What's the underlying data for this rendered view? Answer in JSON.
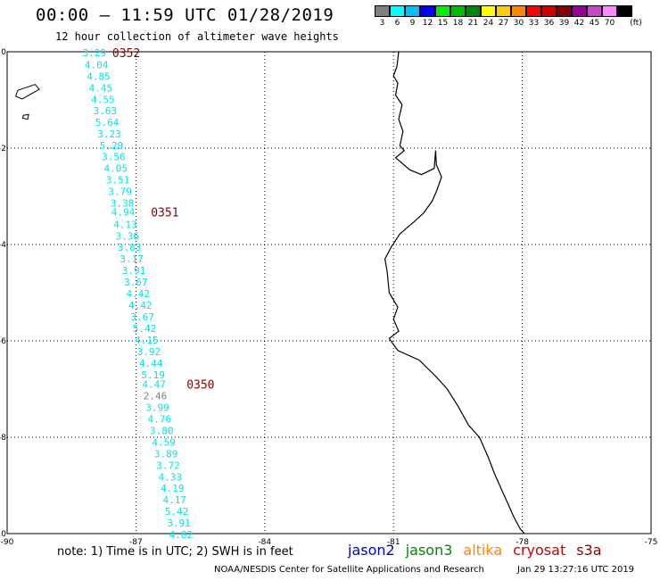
{
  "header": {
    "title": "00:00 – 11:59 UTC 01/28/2019",
    "subtitle": "12 hour collection of altimeter wave heights"
  },
  "legend": {
    "unit": "(ft)",
    "bins": [
      {
        "label": "3",
        "color": "#808080"
      },
      {
        "label": "6",
        "color": "#00ffff"
      },
      {
        "label": "9",
        "color": "#00bfff"
      },
      {
        "label": "12",
        "color": "#0000ff"
      },
      {
        "label": "15",
        "color": "#00ee00"
      },
      {
        "label": "18",
        "color": "#00bb00"
      },
      {
        "label": "21",
        "color": "#008800"
      },
      {
        "label": "24",
        "color": "#ffff00"
      },
      {
        "label": "27",
        "color": "#ffcc00"
      },
      {
        "label": "30",
        "color": "#ff8800"
      },
      {
        "label": "33",
        "color": "#ff0000"
      },
      {
        "label": "36",
        "color": "#cc0000"
      },
      {
        "label": "39",
        "color": "#880000"
      },
      {
        "label": "42",
        "color": "#990099"
      },
      {
        "label": "45",
        "color": "#cc44cc"
      },
      {
        "label": "70",
        "color": "#ff88ff"
      },
      {
        "label": "",
        "color": "#000000"
      }
    ]
  },
  "axes": {
    "x_ticks": [
      "-90",
      "-87",
      "-84",
      "-81",
      "-78",
      "-75"
    ],
    "x_values": [
      -90,
      -87,
      -84,
      -81,
      -78,
      -75
    ],
    "y_ticks": [
      "0",
      "-2",
      "-4",
      "-6",
      "-8",
      "-10"
    ],
    "y_values": [
      0,
      -2,
      -4,
      -6,
      -8,
      -10
    ],
    "xlim": [
      -90,
      -75
    ],
    "ylim": [
      -10,
      0
    ]
  },
  "swh_points": [
    {
      "lat": -0.02,
      "lon": -87.97,
      "value": "3.29",
      "color": "#00e5e5"
    },
    {
      "lat": -0.27,
      "lon": -87.92,
      "value": "4.04",
      "color": "#00e5e5"
    },
    {
      "lat": -0.51,
      "lon": -87.87,
      "value": "4.85",
      "color": "#00e5e5"
    },
    {
      "lat": -0.75,
      "lon": -87.82,
      "value": "4.45",
      "color": "#00e5e5"
    },
    {
      "lat": -0.99,
      "lon": -87.77,
      "value": "4.55",
      "color": "#00e5e5"
    },
    {
      "lat": -1.22,
      "lon": -87.72,
      "value": "3.63",
      "color": "#00e5e5"
    },
    {
      "lat": -1.46,
      "lon": -87.67,
      "value": "5.64",
      "color": "#00e5e5"
    },
    {
      "lat": -1.7,
      "lon": -87.62,
      "value": "3.23",
      "color": "#00e5e5"
    },
    {
      "lat": -1.94,
      "lon": -87.57,
      "value": "5.29",
      "color": "#00e5e5"
    },
    {
      "lat": -2.18,
      "lon": -87.52,
      "value": "3.56",
      "color": "#00e5e5"
    },
    {
      "lat": -2.42,
      "lon": -87.47,
      "value": "4.05",
      "color": "#00e5e5"
    },
    {
      "lat": -2.66,
      "lon": -87.42,
      "value": "3.51",
      "color": "#00e5e5"
    },
    {
      "lat": -2.9,
      "lon": -87.37,
      "value": "3.79",
      "color": "#00e5e5"
    },
    {
      "lat": -3.14,
      "lon": -87.32,
      "value": "3.38",
      "color": "#00e5e5"
    },
    {
      "lat": -3.32,
      "lon": -87.3,
      "value": "4.94",
      "color": "#00e5e5"
    },
    {
      "lat": -3.58,
      "lon": -87.25,
      "value": "4.13",
      "color": "#00e5e5"
    },
    {
      "lat": -3.82,
      "lon": -87.2,
      "value": "3.36",
      "color": "#00e5e5"
    },
    {
      "lat": -4.06,
      "lon": -87.15,
      "value": "3.83",
      "color": "#00e5e5"
    },
    {
      "lat": -4.3,
      "lon": -87.1,
      "value": "3.17",
      "color": "#00e5e5"
    },
    {
      "lat": -4.54,
      "lon": -87.05,
      "value": "3.91",
      "color": "#00e5e5"
    },
    {
      "lat": -4.78,
      "lon": -87.0,
      "value": "3.67",
      "color": "#00e5e5"
    },
    {
      "lat": -5.02,
      "lon": -86.95,
      "value": "4.42",
      "color": "#00e5e5"
    },
    {
      "lat": -5.26,
      "lon": -86.9,
      "value": "4.42",
      "color": "#00e5e5"
    },
    {
      "lat": -5.5,
      "lon": -86.85,
      "value": "3.67",
      "color": "#00e5e5"
    },
    {
      "lat": -5.74,
      "lon": -86.8,
      "value": "5.42",
      "color": "#00e5e5"
    },
    {
      "lat": -5.98,
      "lon": -86.75,
      "value": "4.15",
      "color": "#00e5e5"
    },
    {
      "lat": -6.22,
      "lon": -86.7,
      "value": "3.92",
      "color": "#00e5e5"
    },
    {
      "lat": -6.46,
      "lon": -86.65,
      "value": "4.44",
      "color": "#00e5e5"
    },
    {
      "lat": -6.7,
      "lon": -86.6,
      "value": "5.19",
      "color": "#00e5e5"
    },
    {
      "lat": -6.9,
      "lon": -86.58,
      "value": "4.47",
      "color": "#00e5e5"
    },
    {
      "lat": -7.14,
      "lon": -86.55,
      "value": "2.46",
      "color": "#808080"
    },
    {
      "lat": -7.38,
      "lon": -86.5,
      "value": "3.99",
      "color": "#00e5e5"
    },
    {
      "lat": -7.62,
      "lon": -86.45,
      "value": "4.76",
      "color": "#00e5e5"
    },
    {
      "lat": -7.86,
      "lon": -86.4,
      "value": "3.80",
      "color": "#00e5e5"
    },
    {
      "lat": -8.1,
      "lon": -86.35,
      "value": "4.59",
      "color": "#00e5e5"
    },
    {
      "lat": -8.34,
      "lon": -86.3,
      "value": "3.89",
      "color": "#00e5e5"
    },
    {
      "lat": -8.58,
      "lon": -86.25,
      "value": "3.72",
      "color": "#00e5e5"
    },
    {
      "lat": -8.82,
      "lon": -86.2,
      "value": "4.33",
      "color": "#00e5e5"
    },
    {
      "lat": -9.06,
      "lon": -86.15,
      "value": "4.19",
      "color": "#00e5e5"
    },
    {
      "lat": -9.3,
      "lon": -86.1,
      "value": "4.17",
      "color": "#00e5e5"
    },
    {
      "lat": -9.54,
      "lon": -86.05,
      "value": "5.42",
      "color": "#00e5e5"
    },
    {
      "lat": -9.78,
      "lon": -86.0,
      "value": "3.91",
      "color": "#00e5e5"
    },
    {
      "lat": -10.02,
      "lon": -85.95,
      "value": "4.82",
      "color": "#00e5e5"
    }
  ],
  "time_labels": [
    {
      "lat": -0.02,
      "lon": -87.55,
      "text": "0352",
      "color": "#8b0000"
    },
    {
      "lat": -3.32,
      "lon": -86.65,
      "text": "0351",
      "color": "#8b0000"
    },
    {
      "lat": -6.9,
      "lon": -85.82,
      "text": "0350",
      "color": "#8b0000"
    }
  ],
  "coastline": [
    [
      -80.88,
      0.0
    ],
    [
      -80.92,
      -0.3
    ],
    [
      -81.0,
      -0.5
    ],
    [
      -80.9,
      -0.65
    ],
    [
      -80.95,
      -0.9
    ],
    [
      -80.8,
      -1.1
    ],
    [
      -80.88,
      -1.4
    ],
    [
      -80.78,
      -1.65
    ],
    [
      -80.85,
      -1.95
    ],
    [
      -80.75,
      -2.05
    ],
    [
      -80.95,
      -2.2
    ],
    [
      -80.62,
      -2.45
    ],
    [
      -80.35,
      -2.55
    ],
    [
      -80.05,
      -2.42
    ],
    [
      -80.02,
      -2.05
    ],
    [
      -80.0,
      -2.35
    ],
    [
      -79.88,
      -2.6
    ],
    [
      -80.0,
      -2.9
    ],
    [
      -80.1,
      -3.1
    ],
    [
      -80.3,
      -3.35
    ],
    [
      -80.55,
      -3.55
    ],
    [
      -80.85,
      -3.78
    ],
    [
      -81.05,
      -4.05
    ],
    [
      -81.2,
      -4.3
    ],
    [
      -81.15,
      -4.55
    ],
    [
      -81.1,
      -5.0
    ],
    [
      -80.9,
      -5.3
    ],
    [
      -81.0,
      -5.55
    ],
    [
      -80.88,
      -5.8
    ],
    [
      -81.1,
      -5.95
    ],
    [
      -80.9,
      -6.2
    ],
    [
      -80.4,
      -6.4
    ],
    [
      -80.0,
      -6.75
    ],
    [
      -79.75,
      -7.0
    ],
    [
      -79.5,
      -7.35
    ],
    [
      -79.25,
      -7.75
    ],
    [
      -79.0,
      -8.0
    ],
    [
      -78.8,
      -8.4
    ],
    [
      -78.65,
      -8.75
    ],
    [
      -78.5,
      -9.05
    ],
    [
      -78.35,
      -9.35
    ],
    [
      -78.2,
      -9.65
    ],
    [
      -78.05,
      -9.9
    ],
    [
      -77.95,
      -10.0
    ]
  ],
  "islands": [
    [
      [
        -89.75,
        -0.8
      ],
      [
        -89.35,
        -0.68
      ],
      [
        -89.25,
        -0.78
      ],
      [
        -89.65,
        -0.98
      ],
      [
        -89.8,
        -0.92
      ]
    ],
    [
      [
        -89.62,
        -1.32
      ],
      [
        -89.5,
        -1.3
      ],
      [
        -89.52,
        -1.4
      ],
      [
        -89.64,
        -1.38
      ]
    ]
  ],
  "footer": {
    "note": "note: 1) Time is in UTC; 2) SWH is in feet",
    "satellites": [
      {
        "name": "jason2",
        "color": "#0000cc"
      },
      {
        "name": "jason3",
        "color": "#008800"
      },
      {
        "name": "altika",
        "color": "#ff8800"
      },
      {
        "name": "cryosat",
        "color": "#cc0000"
      },
      {
        "name": "s3a",
        "color": "#8b0000"
      }
    ],
    "credit": "NOAA/NESDIS Center for Satellite Applications and Research",
    "timestamp": "Jan 29 13:27:16 UTC 2019"
  }
}
